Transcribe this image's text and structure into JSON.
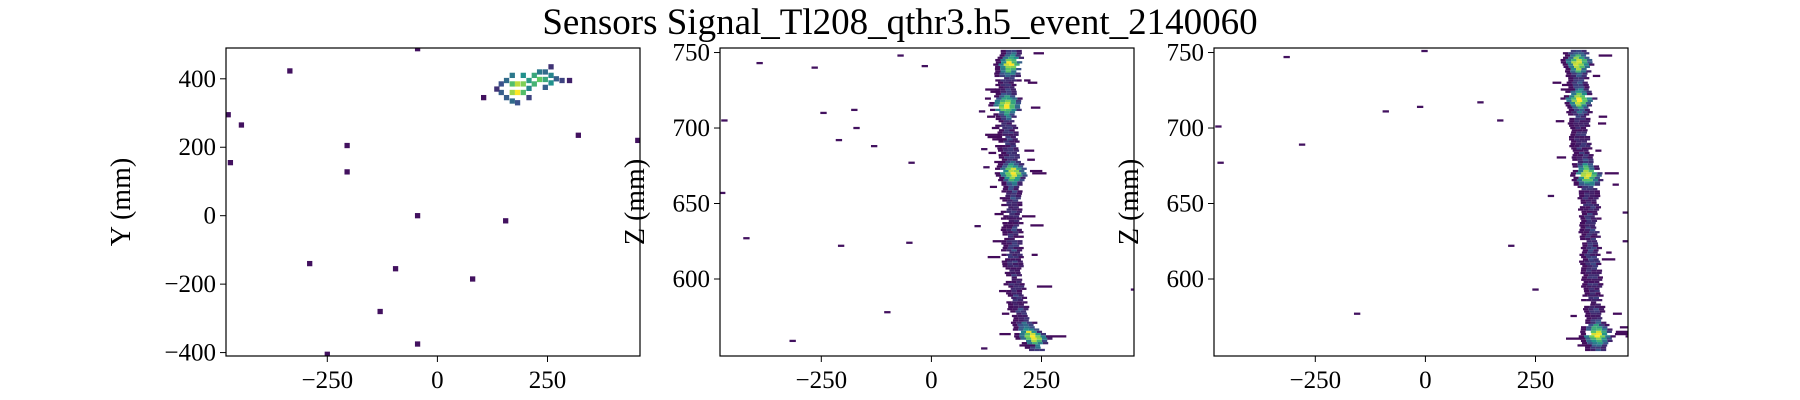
{
  "title": "Sensors Signal_Tl208_qthr3.h5_event_2140060",
  "colormap": [
    "#440154",
    "#3b528b",
    "#21918c",
    "#5ec962",
    "#fde725"
  ],
  "chart_data": [
    {
      "type": "heatmap",
      "name": "xy-projection",
      "xlabel": "",
      "ylabel": "Y (mm)",
      "xlim": [
        -480,
        460
      ],
      "ylim": [
        -410,
        490
      ],
      "xticks": [
        -250,
        0,
        250
      ],
      "yticks": [
        -400,
        -200,
        0,
        200,
        400
      ],
      "cell_w": 12,
      "cell_h": 12,
      "cells": [
        [
          -335,
          423,
          0.05
        ],
        [
          -45,
          488,
          0.05
        ],
        [
          -475,
          295,
          0.05
        ],
        [
          -445,
          265,
          0.05
        ],
        [
          -470,
          155,
          0.05
        ],
        [
          -205,
          205,
          0.05
        ],
        [
          -205,
          128,
          0.05
        ],
        [
          -45,
          0,
          0.05
        ],
        [
          155,
          -15,
          0.05
        ],
        [
          -290,
          -140,
          0.05
        ],
        [
          -95,
          -155,
          0.05
        ],
        [
          80,
          -185,
          0.05
        ],
        [
          -130,
          -280,
          0.05
        ],
        [
          -45,
          -375,
          0.05
        ],
        [
          -250,
          -405,
          0.05
        ],
        [
          320,
          235,
          0.05
        ],
        [
          455,
          220,
          0.05
        ],
        [
          105,
          345,
          0.05
        ],
        [
          145,
          385,
          0.25
        ],
        [
          145,
          360,
          0.3
        ],
        [
          157,
          395,
          0.35
        ],
        [
          157,
          345,
          0.3
        ],
        [
          170,
          410,
          0.4
        ],
        [
          170,
          385,
          0.7
        ],
        [
          170,
          360,
          0.85
        ],
        [
          170,
          335,
          0.35
        ],
        [
          182,
          385,
          0.9
        ],
        [
          182,
          360,
          1.0
        ],
        [
          182,
          330,
          0.25
        ],
        [
          195,
          410,
          0.5
        ],
        [
          195,
          385,
          0.8
        ],
        [
          195,
          360,
          0.7
        ],
        [
          208,
          395,
          0.55
        ],
        [
          208,
          372,
          0.45
        ],
        [
          220,
          410,
          0.6
        ],
        [
          220,
          385,
          0.65
        ],
        [
          232,
          420,
          0.4
        ],
        [
          232,
          398,
          0.75
        ],
        [
          245,
          420,
          0.35
        ],
        [
          245,
          398,
          0.6
        ],
        [
          245,
          375,
          0.3
        ],
        [
          258,
          410,
          0.45
        ],
        [
          258,
          388,
          0.5
        ],
        [
          270,
          400,
          0.3
        ],
        [
          283,
          395,
          0.2
        ],
        [
          300,
          395,
          0.1
        ],
        [
          135,
          370,
          0.15
        ],
        [
          208,
          345,
          0.2
        ],
        [
          258,
          435,
          0.15
        ]
      ]
    },
    {
      "type": "heatmap",
      "name": "xz-projection",
      "xlabel": "",
      "ylabel": "Z (mm)",
      "xlim": [
        -480,
        460
      ],
      "ylim": [
        549,
        753
      ],
      "xticks": [
        -250,
        0,
        250
      ],
      "yticks": [
        600,
        650,
        700,
        750
      ],
      "cell_w": 12,
      "cell_h": 1.5,
      "track": {
        "points": [
          [
            185,
            752
          ],
          [
            178,
            741
          ],
          [
            170,
            715
          ],
          [
            178,
            690
          ],
          [
            185,
            670
          ],
          [
            185,
            640
          ],
          [
            188,
            610
          ],
          [
            195,
            585
          ],
          [
            215,
            568
          ],
          [
            235,
            560
          ],
          [
            240,
            553
          ]
        ],
        "hot": [
          [
            188,
            742
          ],
          [
            172,
            715
          ],
          [
            182,
            670
          ],
          [
            235,
            562
          ]
        ]
      },
      "cells": [
        [
          -390,
          743,
          0.05
        ],
        [
          -265,
          740,
          0.05
        ],
        [
          -175,
          712,
          0.05
        ],
        [
          -170,
          700,
          0.05
        ],
        [
          -210,
          692,
          0.05
        ],
        [
          -245,
          710,
          0.05
        ],
        [
          -470,
          705,
          0.05
        ],
        [
          -130,
          688,
          0.05
        ],
        [
          -70,
          748,
          0.05
        ],
        [
          -15,
          741,
          0.05
        ],
        [
          -45,
          677,
          0.05
        ],
        [
          -475,
          657,
          0.05
        ],
        [
          -420,
          627,
          0.05
        ],
        [
          -205,
          622,
          0.05
        ],
        [
          -50,
          624,
          0.05
        ],
        [
          -100,
          578,
          0.05
        ],
        [
          -315,
          559,
          0.05
        ],
        [
          120,
          554,
          0.05
        ],
        [
          105,
          635,
          0.05
        ],
        [
          120,
          686,
          0.05
        ],
        [
          115,
          711,
          0.05
        ],
        [
          125,
          674,
          0.05
        ],
        [
          460,
          593,
          0.05
        ]
      ]
    },
    {
      "type": "heatmap",
      "name": "yz-projection",
      "xlabel": "",
      "ylabel": "Z (mm)",
      "xlim": [
        -480,
        460
      ],
      "ylim": [
        549,
        753
      ],
      "xticks": [
        -250,
        0,
        250
      ],
      "yticks": [
        600,
        650,
        700,
        750
      ],
      "cell_w": 12,
      "cell_h": 1.5,
      "track": {
        "points": [
          [
            345,
            752
          ],
          [
            348,
            741
          ],
          [
            350,
            715
          ],
          [
            355,
            690
          ],
          [
            368,
            670
          ],
          [
            375,
            650
          ],
          [
            378,
            620
          ],
          [
            380,
            600
          ],
          [
            385,
            580
          ],
          [
            390,
            565
          ],
          [
            392,
            553
          ]
        ],
        "hot": [
          [
            350,
            743
          ],
          [
            352,
            719
          ],
          [
            368,
            669
          ],
          [
            390,
            563
          ]
        ]
      },
      "cells": [
        [
          -470,
          701,
          0.05
        ],
        [
          -465,
          677,
          0.05
        ],
        [
          -315,
          747,
          0.05
        ],
        [
          -280,
          689,
          0.05
        ],
        [
          -90,
          711,
          0.05
        ],
        [
          -2,
          751,
          0.05
        ],
        [
          -12,
          714,
          0.05
        ],
        [
          125,
          717,
          0.05
        ],
        [
          -155,
          577,
          0.05
        ],
        [
          250,
          593,
          0.05
        ],
        [
          285,
          655,
          0.05
        ],
        [
          195,
          622,
          0.05
        ],
        [
          170,
          705,
          0.05
        ],
        [
          455,
          644,
          0.05
        ],
        [
          455,
          625,
          0.05
        ]
      ]
    }
  ]
}
